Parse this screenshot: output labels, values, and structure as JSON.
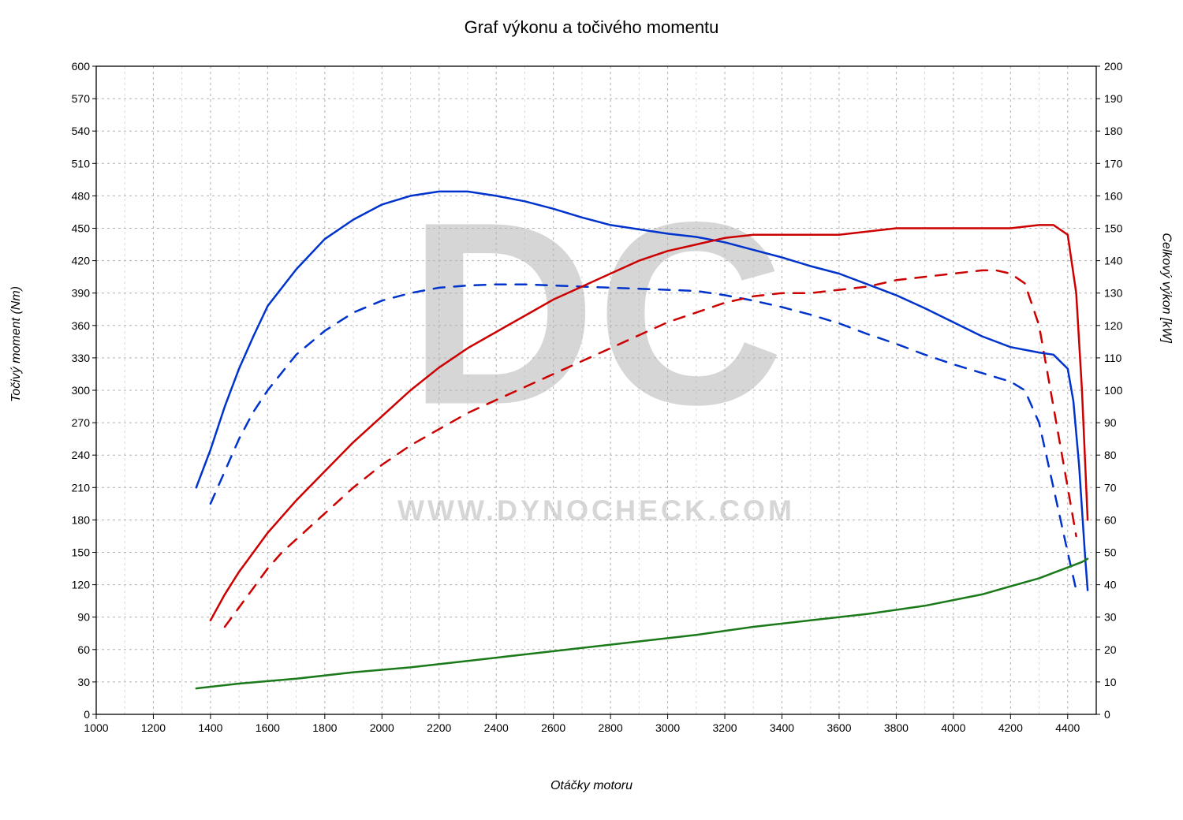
{
  "chart": {
    "type": "line",
    "title": "Graf výkonu a točivého momentu",
    "title_fontsize": 22,
    "xlabel": "Otáčky motoru",
    "ylabel_left": "Točivý moment (Nm)",
    "ylabel_right": "Celkový výkon [kW]",
    "label_fontsize": 16,
    "tick_fontsize": 14,
    "background_color": "#ffffff",
    "plot_background_color": "#ffffff",
    "border_color": "#000000",
    "grid_major_color": "#b0b0b0",
    "grid_minor_color": "#d8d8d8",
    "grid_dash": "3,4",
    "x": {
      "lim": [
        1000,
        4500
      ],
      "major_step": 200,
      "minor_step": 100,
      "ticks": [
        1000,
        1200,
        1400,
        1600,
        1800,
        2000,
        2200,
        2400,
        2600,
        2800,
        3000,
        3200,
        3400,
        3600,
        3800,
        4000,
        4200,
        4400
      ]
    },
    "y_left": {
      "lim": [
        0,
        600
      ],
      "major_step": 30,
      "ticks": [
        0,
        30,
        60,
        90,
        120,
        150,
        180,
        210,
        240,
        270,
        300,
        330,
        360,
        390,
        420,
        450,
        480,
        510,
        540,
        570,
        600
      ]
    },
    "y_right": {
      "lim": [
        0,
        200
      ],
      "major_step": 10,
      "ticks": [
        0,
        10,
        20,
        30,
        40,
        50,
        60,
        70,
        80,
        90,
        100,
        110,
        120,
        130,
        140,
        150,
        160,
        170,
        180,
        190,
        200
      ]
    },
    "line_width_main": 2.5,
    "line_width_dash": 2.5,
    "dash_pattern": "14,12",
    "watermark_big": "DC",
    "watermark_small": "WWW.DYNOCHECK.COM",
    "watermark_color": "#b5b5b5",
    "series": {
      "torque_tuned": {
        "axis": "left",
        "color": "#0033cc",
        "style": "solid",
        "data": [
          [
            1350,
            210
          ],
          [
            1400,
            245
          ],
          [
            1450,
            285
          ],
          [
            1500,
            320
          ],
          [
            1550,
            350
          ],
          [
            1600,
            378
          ],
          [
            1700,
            412
          ],
          [
            1800,
            440
          ],
          [
            1900,
            458
          ],
          [
            2000,
            472
          ],
          [
            2100,
            480
          ],
          [
            2200,
            484
          ],
          [
            2300,
            484
          ],
          [
            2400,
            480
          ],
          [
            2500,
            475
          ],
          [
            2600,
            468
          ],
          [
            2700,
            460
          ],
          [
            2800,
            453
          ],
          [
            2900,
            449
          ],
          [
            3000,
            445
          ],
          [
            3100,
            442
          ],
          [
            3200,
            437
          ],
          [
            3300,
            430
          ],
          [
            3400,
            423
          ],
          [
            3500,
            415
          ],
          [
            3600,
            408
          ],
          [
            3700,
            398
          ],
          [
            3800,
            388
          ],
          [
            3900,
            376
          ],
          [
            4000,
            363
          ],
          [
            4100,
            350
          ],
          [
            4200,
            340
          ],
          [
            4300,
            335
          ],
          [
            4350,
            333
          ],
          [
            4400,
            320
          ],
          [
            4420,
            290
          ],
          [
            4440,
            230
          ],
          [
            4460,
            150
          ],
          [
            4470,
            115
          ]
        ]
      },
      "torque_stock": {
        "axis": "left",
        "color": "#0033cc",
        "style": "dashed",
        "data": [
          [
            1400,
            195
          ],
          [
            1450,
            225
          ],
          [
            1500,
            255
          ],
          [
            1550,
            280
          ],
          [
            1600,
            300
          ],
          [
            1700,
            333
          ],
          [
            1800,
            355
          ],
          [
            1900,
            372
          ],
          [
            2000,
            383
          ],
          [
            2100,
            390
          ],
          [
            2200,
            395
          ],
          [
            2300,
            397
          ],
          [
            2400,
            398
          ],
          [
            2500,
            398
          ],
          [
            2600,
            397
          ],
          [
            2700,
            396
          ],
          [
            2800,
            395
          ],
          [
            2900,
            394
          ],
          [
            3000,
            393
          ],
          [
            3100,
            392
          ],
          [
            3200,
            388
          ],
          [
            3300,
            383
          ],
          [
            3400,
            377
          ],
          [
            3500,
            370
          ],
          [
            3600,
            362
          ],
          [
            3700,
            352
          ],
          [
            3800,
            343
          ],
          [
            3900,
            333
          ],
          [
            4000,
            324
          ],
          [
            4100,
            316
          ],
          [
            4150,
            312
          ],
          [
            4200,
            308
          ],
          [
            4250,
            300
          ],
          [
            4300,
            270
          ],
          [
            4350,
            210
          ],
          [
            4400,
            150
          ],
          [
            4430,
            115
          ]
        ]
      },
      "power_tuned": {
        "axis": "right",
        "color": "#cc0000",
        "style": "solid",
        "data": [
          [
            1400,
            29
          ],
          [
            1450,
            37
          ],
          [
            1500,
            44
          ],
          [
            1550,
            50
          ],
          [
            1600,
            56
          ],
          [
            1700,
            66
          ],
          [
            1800,
            75
          ],
          [
            1900,
            84
          ],
          [
            2000,
            92
          ],
          [
            2100,
            100
          ],
          [
            2200,
            107
          ],
          [
            2300,
            113
          ],
          [
            2400,
            118
          ],
          [
            2500,
            123
          ],
          [
            2600,
            128
          ],
          [
            2700,
            132
          ],
          [
            2800,
            136
          ],
          [
            2900,
            140
          ],
          [
            3000,
            143
          ],
          [
            3100,
            145
          ],
          [
            3200,
            147
          ],
          [
            3300,
            148
          ],
          [
            3400,
            148
          ],
          [
            3500,
            148
          ],
          [
            3600,
            148
          ],
          [
            3700,
            149
          ],
          [
            3800,
            150
          ],
          [
            3900,
            150
          ],
          [
            4000,
            150
          ],
          [
            4100,
            150
          ],
          [
            4200,
            150
          ],
          [
            4300,
            151
          ],
          [
            4350,
            151
          ],
          [
            4400,
            148
          ],
          [
            4430,
            130
          ],
          [
            4450,
            100
          ],
          [
            4460,
            80
          ],
          [
            4470,
            60
          ]
        ]
      },
      "power_stock": {
        "axis": "right",
        "color": "#cc0000",
        "style": "dashed",
        "data": [
          [
            1450,
            27
          ],
          [
            1500,
            33
          ],
          [
            1550,
            39
          ],
          [
            1600,
            45
          ],
          [
            1650,
            50
          ],
          [
            1700,
            54
          ],
          [
            1800,
            62
          ],
          [
            1900,
            70
          ],
          [
            2000,
            77
          ],
          [
            2100,
            83
          ],
          [
            2200,
            88
          ],
          [
            2300,
            93
          ],
          [
            2400,
            97
          ],
          [
            2500,
            101
          ],
          [
            2600,
            105
          ],
          [
            2700,
            109
          ],
          [
            2800,
            113
          ],
          [
            2900,
            117
          ],
          [
            3000,
            121
          ],
          [
            3100,
            124
          ],
          [
            3200,
            127
          ],
          [
            3300,
            129
          ],
          [
            3400,
            130
          ],
          [
            3500,
            130
          ],
          [
            3600,
            131
          ],
          [
            3700,
            132
          ],
          [
            3800,
            134
          ],
          [
            3900,
            135
          ],
          [
            4000,
            136
          ],
          [
            4100,
            137
          ],
          [
            4150,
            137
          ],
          [
            4200,
            136
          ],
          [
            4250,
            133
          ],
          [
            4300,
            120
          ],
          [
            4350,
            95
          ],
          [
            4400,
            70
          ],
          [
            4430,
            55
          ]
        ]
      },
      "loss": {
        "axis": "right",
        "color": "#1a7a1a",
        "style": "solid",
        "data": [
          [
            1350,
            8
          ],
          [
            1500,
            9.5
          ],
          [
            1700,
            11
          ],
          [
            1900,
            13
          ],
          [
            2100,
            14.5
          ],
          [
            2300,
            16.5
          ],
          [
            2500,
            18.5
          ],
          [
            2700,
            20.5
          ],
          [
            2900,
            22.5
          ],
          [
            3100,
            24.5
          ],
          [
            3300,
            27
          ],
          [
            3500,
            29
          ],
          [
            3700,
            31
          ],
          [
            3900,
            33.5
          ],
          [
            4100,
            37
          ],
          [
            4300,
            42
          ],
          [
            4450,
            47
          ],
          [
            4470,
            48
          ]
        ]
      }
    }
  }
}
